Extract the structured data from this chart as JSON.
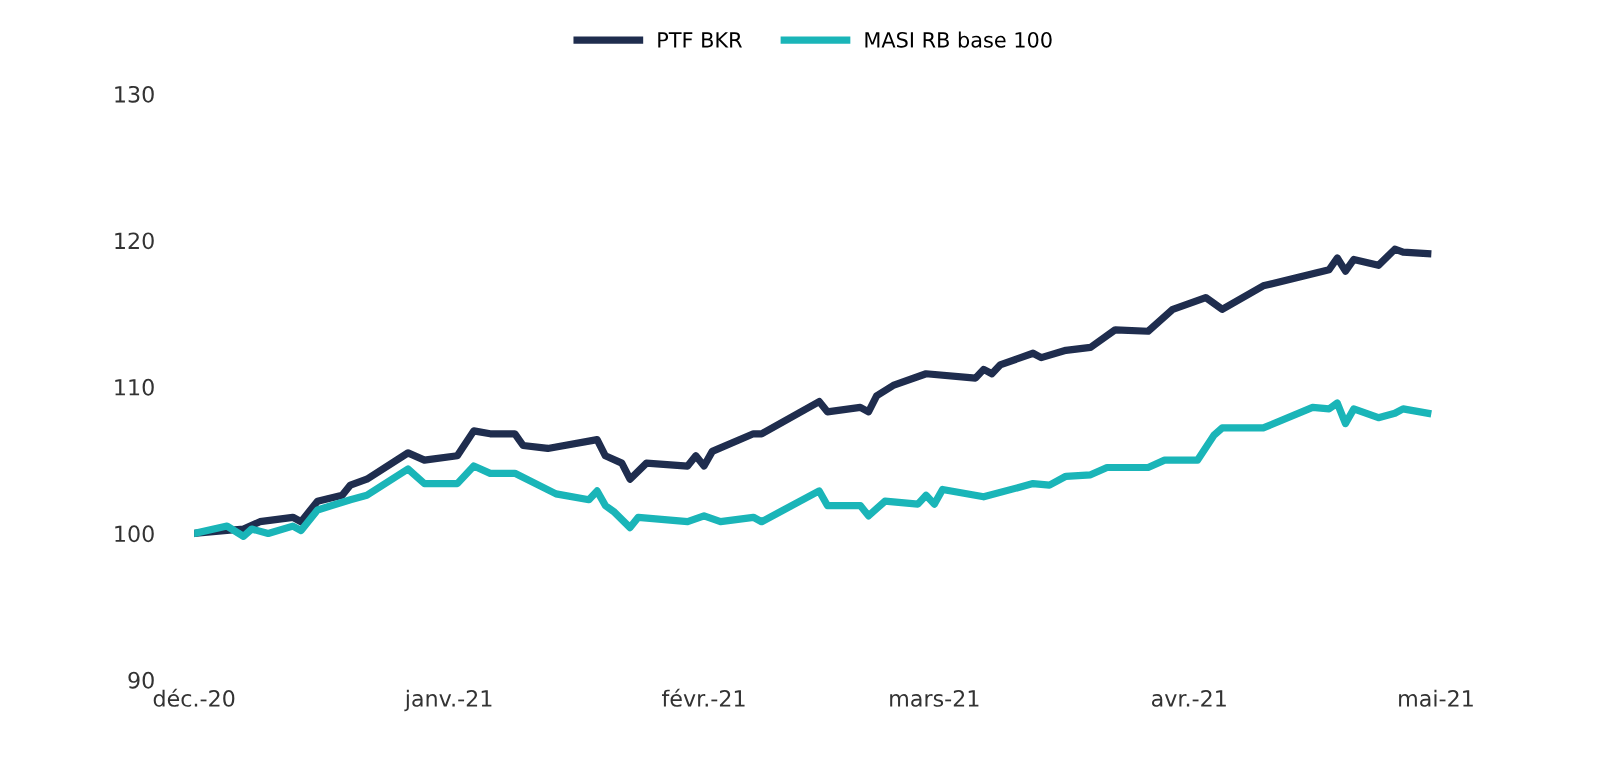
{
  "chart_data": {
    "type": "line",
    "legend": "top",
    "grid": false,
    "line_style": "solid",
    "marker": "none",
    "xlim": [
      "2020-12-01",
      "2021-05-01"
    ],
    "xticks": [
      {
        "value": "2020-12-01",
        "label": "déc.-20"
      },
      {
        "value": "2021-01-01",
        "label": "janv.-21"
      },
      {
        "value": "2021-02-01",
        "label": "févr.-21"
      },
      {
        "value": "2021-03-01",
        "label": "mars-21"
      },
      {
        "value": "2021-04-01",
        "label": "avr.-21"
      },
      {
        "value": "2021-05-01",
        "label": "mai-21"
      }
    ],
    "ylim": [
      90,
      130
    ],
    "yticks": [
      90,
      100,
      110,
      120,
      130
    ],
    "series": [
      {
        "name": "PTF BKR",
        "color": "#1f2d4e",
        "x": [
          "2020-12-01",
          "2020-12-07",
          "2020-12-09",
          "2020-12-13",
          "2020-12-14",
          "2020-12-16",
          "2020-12-19",
          "2020-12-20",
          "2020-12-22",
          "2020-12-27",
          "2020-12-29",
          "2021-01-02",
          "2021-01-04",
          "2021-01-06",
          "2021-01-09",
          "2021-01-10",
          "2021-01-13",
          "2021-01-19",
          "2021-01-20",
          "2021-01-22",
          "2021-01-23",
          "2021-01-25",
          "2021-01-30",
          "2021-01-31",
          "2021-02-01",
          "2021-02-02",
          "2021-02-07",
          "2021-02-08",
          "2021-02-15",
          "2021-02-16",
          "2021-02-20",
          "2021-02-21",
          "2021-02-22",
          "2021-02-24",
          "2021-02-28",
          "2021-03-06",
          "2021-03-07",
          "2021-03-08",
          "2021-03-09",
          "2021-03-13",
          "2021-03-14",
          "2021-03-17",
          "2021-03-20",
          "2021-03-23",
          "2021-03-27",
          "2021-03-30",
          "2021-04-03",
          "2021-04-05",
          "2021-04-10",
          "2021-04-18",
          "2021-04-19",
          "2021-04-20",
          "2021-04-21",
          "2021-04-24",
          "2021-04-26",
          "2021-04-27",
          "2021-04-30"
        ],
        "values": [
          100.0,
          100.3,
          100.8,
          101.1,
          100.8,
          102.2,
          102.6,
          103.3,
          103.7,
          105.5,
          105.0,
          105.3,
          107.0,
          106.8,
          106.8,
          106.0,
          105.8,
          106.4,
          105.3,
          104.8,
          103.7,
          104.8,
          104.6,
          105.3,
          104.6,
          105.6,
          106.8,
          106.8,
          109.0,
          108.3,
          108.6,
          108.3,
          109.4,
          110.1,
          110.9,
          110.6,
          111.2,
          110.9,
          111.5,
          112.3,
          112.0,
          112.5,
          112.7,
          113.9,
          113.8,
          115.3,
          116.1,
          115.3,
          116.9,
          118.0,
          118.8,
          117.9,
          118.7,
          118.3,
          119.4,
          119.2,
          119.1
        ]
      },
      {
        "name": "MASI RB base 100",
        "color": "#1ab5b8",
        "x": [
          "2020-12-01",
          "2020-12-05",
          "2020-12-07",
          "2020-12-08",
          "2020-12-10",
          "2020-12-13",
          "2020-12-14",
          "2020-12-16",
          "2020-12-20",
          "2020-12-22",
          "2020-12-27",
          "2020-12-29",
          "2021-01-02",
          "2021-01-04",
          "2021-01-06",
          "2021-01-09",
          "2021-01-14",
          "2021-01-18",
          "2021-01-19",
          "2021-01-20",
          "2021-01-21",
          "2021-01-23",
          "2021-01-24",
          "2021-01-30",
          "2021-02-01",
          "2021-02-03",
          "2021-02-07",
          "2021-02-08",
          "2021-02-15",
          "2021-02-16",
          "2021-02-20",
          "2021-02-21",
          "2021-02-23",
          "2021-02-27",
          "2021-02-28",
          "2021-03-01",
          "2021-03-02",
          "2021-03-07",
          "2021-03-13",
          "2021-03-15",
          "2021-03-17",
          "2021-03-20",
          "2021-03-22",
          "2021-03-27",
          "2021-03-29",
          "2021-04-02",
          "2021-04-04",
          "2021-04-05",
          "2021-04-10",
          "2021-04-16",
          "2021-04-18",
          "2021-04-19",
          "2021-04-20",
          "2021-04-21",
          "2021-04-24",
          "2021-04-26",
          "2021-04-27",
          "2021-04-30"
        ],
        "values": [
          100.0,
          100.5,
          99.8,
          100.3,
          100.0,
          100.5,
          100.2,
          101.6,
          102.3,
          102.6,
          104.4,
          103.4,
          103.4,
          104.6,
          104.1,
          104.1,
          102.7,
          102.3,
          102.9,
          101.9,
          101.5,
          100.4,
          101.1,
          100.8,
          101.2,
          100.8,
          101.1,
          100.8,
          102.9,
          101.9,
          101.9,
          101.2,
          102.2,
          102.0,
          102.6,
          102.0,
          103.0,
          102.5,
          103.4,
          103.3,
          103.9,
          104.0,
          104.5,
          104.5,
          105.0,
          105.0,
          106.7,
          107.2,
          107.2,
          108.6,
          108.5,
          108.9,
          107.5,
          108.5,
          107.9,
          108.2,
          108.5,
          108.2
        ]
      }
    ]
  }
}
